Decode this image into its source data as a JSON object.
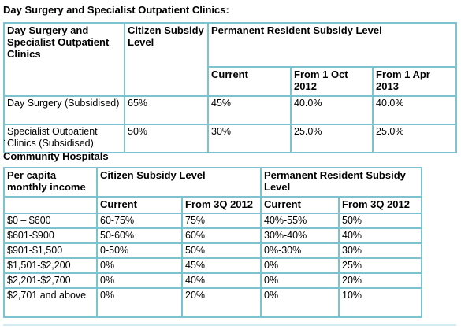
{
  "section1": {
    "heading": "Day Surgery and Specialist Outpatient Clinics:",
    "headers": {
      "service": "Day Surgery and Specialist Outpatient Clinics",
      "citizen": "Citizen Subsidy Level",
      "pr": "Permanent Resident Subsidy Level",
      "current": "Current",
      "oct": "From 1 Oct 2012",
      "apr": "From 1 Apr 2013"
    },
    "rows": [
      [
        "Day Surgery (Subsidised)",
        "65%",
        "45%",
        "40.0%",
        "40.0%"
      ],
      [
        "Specialist Outpatient Clinics (Subsidised)",
        "50%",
        "30%",
        "25.0%",
        "25.0%"
      ]
    ]
  },
  "separator": ".",
  "section2": {
    "heading": "Community Hospitals",
    "headers": {
      "income": "Per capita monthly income",
      "citizen": "Citizen Subsidy Level",
      "pr": "Permanent Resident Subsidy Level",
      "current": "Current",
      "from3q": "From 3Q 2012"
    },
    "rows": [
      [
        "$0 – $600",
        "60-75%",
        "75%",
        "40%-55%",
        "50%"
      ],
      [
        "$601-$900",
        "50-60%",
        "60%",
        "30%-40%",
        "40%"
      ],
      [
        "$901-$1,500",
        "0-50%",
        "50%",
        "0%-30%",
        "30%"
      ],
      [
        "$1,501-$2,200",
        "0%",
        "45%",
        "0%",
        "25%"
      ],
      [
        "$2,201-$2,700",
        "0%",
        "40%",
        "0%",
        "20%"
      ],
      [
        "$2,701 and above",
        "0%",
        "20%",
        "0%",
        "10%"
      ]
    ]
  }
}
